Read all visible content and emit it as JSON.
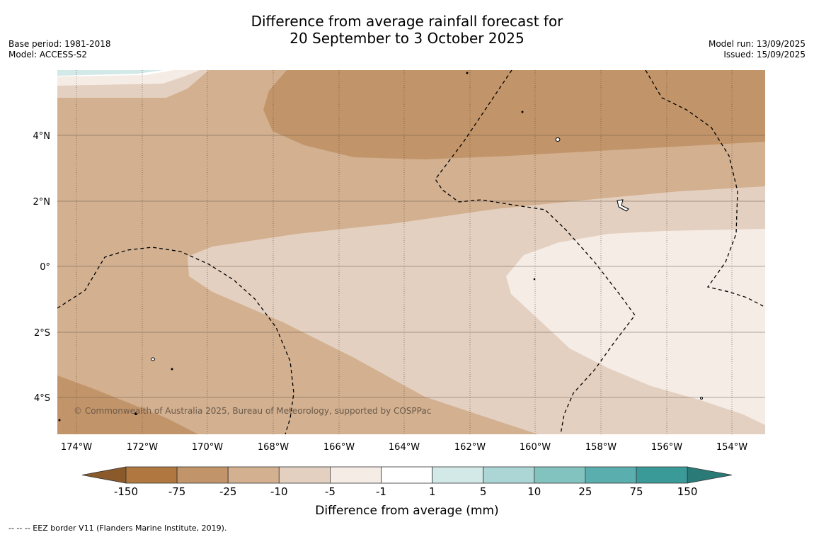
{
  "header": {
    "title_line1": "Difference from average rainfall forecast for",
    "title_line2": "20 September to 3 October 2025",
    "base_period": "Base period: 1981-2018",
    "model": "Model: ACCESS-S2",
    "model_run": "Model run: 13/09/2025",
    "issued": "Issued: 15/09/2025"
  },
  "map": {
    "lon_labels": [
      "174°W",
      "172°W",
      "170°W",
      "168°W",
      "166°W",
      "164°W",
      "162°W",
      "160°W",
      "158°W",
      "156°W",
      "154°W"
    ],
    "lat_labels": [
      "4°N",
      "2°N",
      "0°",
      "2°S",
      "4°S"
    ],
    "copyright": "© Commonwealth of Australia 2025, Bureau of Meteorology, supported by COSPPac",
    "land_fill": "#ffffff",
    "coastline_color": "#000000"
  },
  "colorbar": {
    "label": "Difference from average (mm)",
    "ticks": [
      "-150",
      "-75",
      "-25",
      "-10",
      "-5",
      "-1",
      "1",
      "5",
      "10",
      "25",
      "75",
      "150"
    ],
    "colors": [
      "#8b5a2b",
      "#b07840",
      "#c29469",
      "#d2b090",
      "#e4d0c0",
      "#f5ece6",
      "#ffffff",
      "#d2e9e8",
      "#acd6d5",
      "#82c2bf",
      "#5aaead",
      "#3a9a98",
      "#2a7a78"
    ]
  },
  "footer": {
    "legend_text": "--  --  -- EEZ border V11 (Flanders Marine Institute, 2019)."
  }
}
